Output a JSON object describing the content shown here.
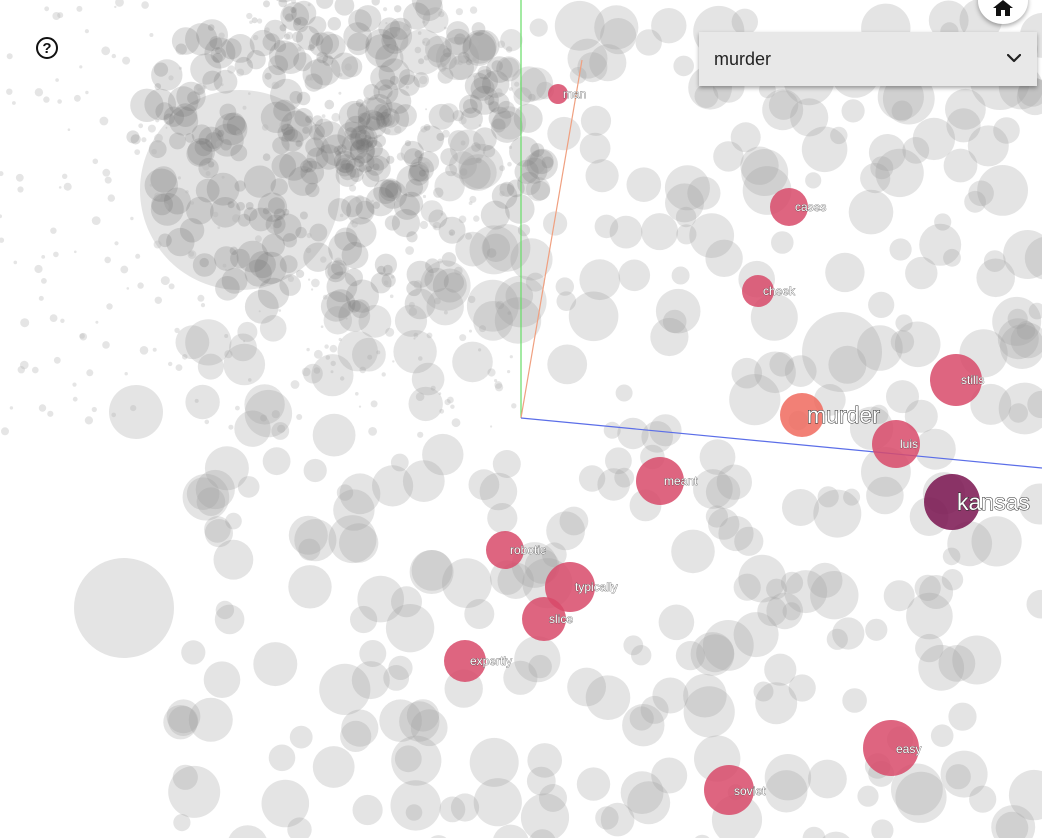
{
  "select": {
    "value": "murder"
  },
  "help_icon": "question-circle-icon",
  "home_icon": "home-icon",
  "chevron_icon": "chevron-down-icon",
  "axes": {
    "x_color": "#5b6ee8",
    "y_color": "#66dd66",
    "z_color": "#f0a080"
  },
  "highlight_colors": {
    "murder": "#f06a5e",
    "kansas": "#7a1450",
    "default": "#d84a6a"
  },
  "highlighted_words": [
    {
      "label": "man"
    },
    {
      "label": "cases"
    },
    {
      "label": "cheek"
    },
    {
      "label": "stills"
    },
    {
      "label": "murder"
    },
    {
      "label": "luis"
    },
    {
      "label": "kansas"
    },
    {
      "label": "meant"
    },
    {
      "label": "robotic"
    },
    {
      "label": "typically"
    },
    {
      "label": "slice"
    },
    {
      "label": "expertly"
    },
    {
      "label": "easy"
    },
    {
      "label": "soviet"
    }
  ]
}
